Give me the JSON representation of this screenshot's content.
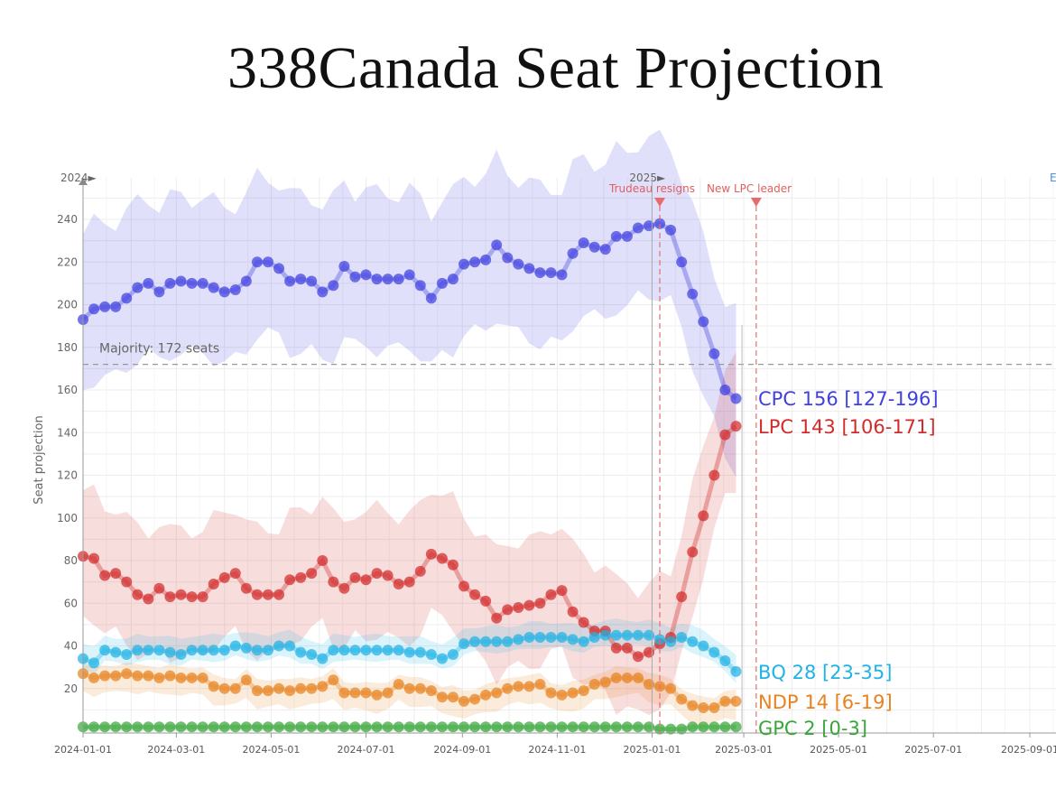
{
  "title": "338Canada Seat Projection",
  "chart_data": {
    "type": "line",
    "ylabel": "Seat projection",
    "ylim": [
      0,
      250
    ],
    "y_ticks": [
      20,
      40,
      60,
      80,
      100,
      120,
      140,
      160,
      180,
      200,
      220,
      240
    ],
    "x_ticks": [
      "2024-01-01",
      "2024-03-01",
      "2024-05-01",
      "2024-07-01",
      "2024-09-01",
      "2024-11-01",
      "2025-01-01",
      "2025-03-01",
      "2025-05-01",
      "2025-07-01",
      "2025-09-01"
    ],
    "year_markers": [
      {
        "label": "2024►",
        "date": "2024-01-01"
      },
      {
        "label": "2025►",
        "date": "2025-01-01"
      }
    ],
    "cut_label": "E",
    "majority": {
      "value": 172,
      "label": "Majority: 172 seats"
    },
    "events": [
      {
        "label": "Trudeau resigns",
        "date": "2025-01-06"
      },
      {
        "label": "New LPC leader",
        "date": "2025-03-09"
      }
    ],
    "x_start": "2024-01-01",
    "step_days": 7,
    "series": [
      {
        "name": "CPC",
        "color": "#4040e0",
        "end_label": "CPC 156 [127-196]",
        "band": [
          33,
          40
        ],
        "values": [
          193,
          198,
          199,
          199,
          203,
          208,
          210,
          206,
          210,
          211,
          210,
          210,
          208,
          206,
          207,
          211,
          220,
          220,
          217,
          211,
          212,
          211,
          206,
          209,
          218,
          213,
          214,
          212,
          212,
          212,
          214,
          209,
          203,
          210,
          212,
          219,
          220,
          221,
          228,
          222,
          219,
          217,
          215,
          215,
          214,
          224,
          229,
          227,
          226,
          232,
          232,
          236,
          237,
          238,
          235,
          220,
          205,
          192,
          177,
          160,
          156
        ]
      },
      {
        "name": "LPC",
        "color": "#d22b2b",
        "end_label": "LPC 143 [106-171]",
        "band": [
          28,
          31
        ],
        "values": [
          82,
          81,
          73,
          74,
          70,
          64,
          62,
          67,
          63,
          64,
          63,
          63,
          69,
          72,
          74,
          67,
          64,
          64,
          64,
          71,
          72,
          74,
          80,
          70,
          67,
          72,
          71,
          74,
          73,
          69,
          70,
          75,
          83,
          81,
          78,
          68,
          64,
          61,
          53,
          57,
          58,
          59,
          60,
          64,
          66,
          56,
          51,
          47,
          47,
          39,
          39,
          35,
          37,
          41,
          44,
          63,
          84,
          101,
          120,
          139,
          143
        ]
      },
      {
        "name": "BQ",
        "color": "#1fb3e5",
        "end_label": "BQ 28 [23-35]",
        "band": [
          5,
          7
        ],
        "values": [
          34,
          32,
          38,
          37,
          36,
          38,
          38,
          38,
          37,
          36,
          38,
          38,
          38,
          38,
          40,
          39,
          38,
          38,
          40,
          40,
          37,
          36,
          34,
          38,
          38,
          38,
          38,
          38,
          38,
          38,
          37,
          37,
          36,
          34,
          36,
          41,
          42,
          42,
          42,
          42,
          43,
          44,
          44,
          44,
          44,
          43,
          42,
          44,
          45,
          45,
          45,
          45,
          45,
          43,
          42,
          44,
          42,
          40,
          37,
          33,
          28
        ]
      },
      {
        "name": "NDP",
        "color": "#e8821e",
        "end_label": "NDP 14 [6-19]",
        "band": [
          8,
          5
        ],
        "values": [
          27,
          25,
          26,
          26,
          27,
          26,
          26,
          25,
          26,
          25,
          25,
          25,
          21,
          20,
          20,
          24,
          19,
          19,
          20,
          19,
          20,
          20,
          21,
          24,
          18,
          18,
          18,
          17,
          18,
          22,
          20,
          20,
          19,
          16,
          16,
          14,
          15,
          17,
          18,
          20,
          21,
          21,
          22,
          18,
          17,
          18,
          19,
          22,
          23,
          25,
          25,
          25,
          22,
          21,
          20,
          15,
          12,
          11,
          11,
          14,
          14
        ]
      },
      {
        "name": "GPC",
        "color": "#3aa63a",
        "end_label": "GPC 2 [0-3]",
        "band": [
          2,
          1
        ],
        "values": [
          2,
          2,
          2,
          2,
          2,
          2,
          2,
          2,
          2,
          2,
          2,
          2,
          2,
          2,
          2,
          2,
          2,
          2,
          2,
          2,
          2,
          2,
          2,
          2,
          2,
          2,
          2,
          2,
          2,
          2,
          2,
          2,
          2,
          2,
          2,
          2,
          2,
          2,
          2,
          2,
          2,
          2,
          2,
          2,
          2,
          2,
          2,
          2,
          2,
          2,
          2,
          2,
          2,
          1,
          1,
          1,
          2,
          2,
          2,
          2,
          2
        ]
      }
    ]
  }
}
